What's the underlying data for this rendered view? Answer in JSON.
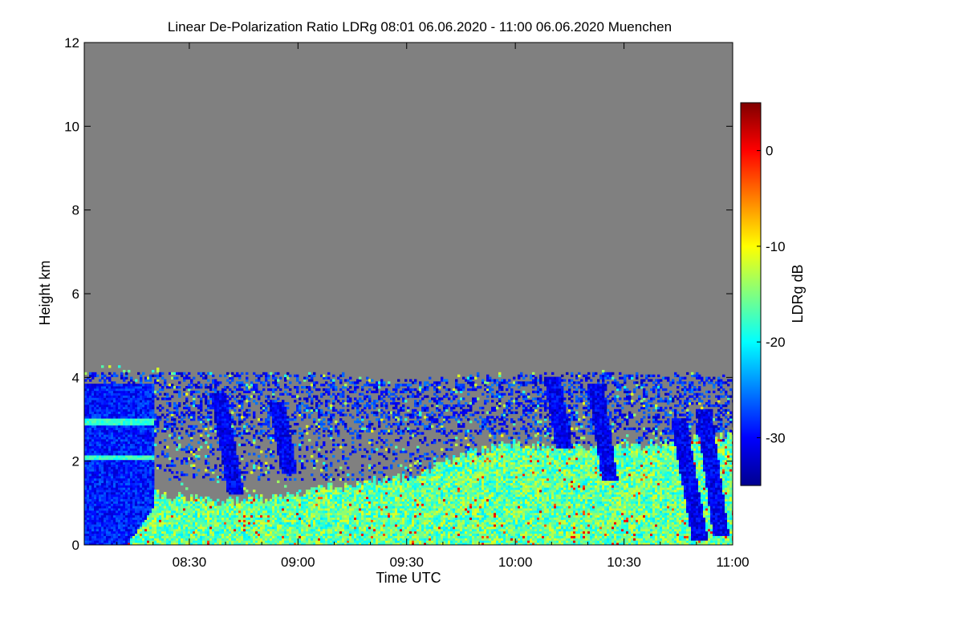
{
  "chart_data": {
    "type": "heatmap",
    "title": "Linear De-Polarization Ratio LDRg   08:01 06.06.2020 - 11:00 06.06.2020 Muenchen",
    "xlabel": "Time UTC",
    "ylabel": "Height km",
    "x_range_utc": [
      "08:01",
      "11:00"
    ],
    "x_ticks": [
      {
        "label": "08:30",
        "minutes_utc": 510
      },
      {
        "label": "09:00",
        "minutes_utc": 540
      },
      {
        "label": "09:30",
        "minutes_utc": 570
      },
      {
        "label": "10:00",
        "minutes_utc": 600
      },
      {
        "label": "10:30",
        "minutes_utc": 630
      },
      {
        "label": "11:00",
        "minutes_utc": 660
      }
    ],
    "ylim": [
      0,
      12
    ],
    "y_ticks": [
      0,
      2,
      4,
      6,
      8,
      10,
      12
    ],
    "colorbar": {
      "label": "LDRg dB",
      "range": [
        -35,
        5
      ],
      "ticks": [
        0,
        -10,
        -20,
        -30
      ],
      "colormap": "jet",
      "no_data_color": "#808080"
    },
    "signal_top_km": [
      {
        "time": "08:01",
        "top_km": 4.5
      },
      {
        "time": "08:15",
        "top_km": 4.2
      },
      {
        "time": "08:30",
        "top_km": 4.15
      },
      {
        "time": "09:00",
        "top_km": 4.1
      },
      {
        "time": "09:30",
        "top_km": 3.9
      },
      {
        "time": "10:00",
        "top_km": 4.1
      },
      {
        "time": "10:30",
        "top_km": 4.1
      },
      {
        "time": "11:00",
        "top_km": 4.0
      }
    ],
    "boundary_layer_top_km": [
      {
        "time": "08:20",
        "top_km": 1.2
      },
      {
        "time": "08:40",
        "top_km": 1.0
      },
      {
        "time": "09:00",
        "top_km": 1.2
      },
      {
        "time": "09:30",
        "top_km": 1.6
      },
      {
        "time": "09:45",
        "top_km": 2.1
      },
      {
        "time": "10:00",
        "top_km": 2.4
      },
      {
        "time": "10:15",
        "top_km": 2.3
      },
      {
        "time": "10:30",
        "top_km": 2.3
      },
      {
        "time": "11:00",
        "top_km": 2.6
      }
    ]
  }
}
